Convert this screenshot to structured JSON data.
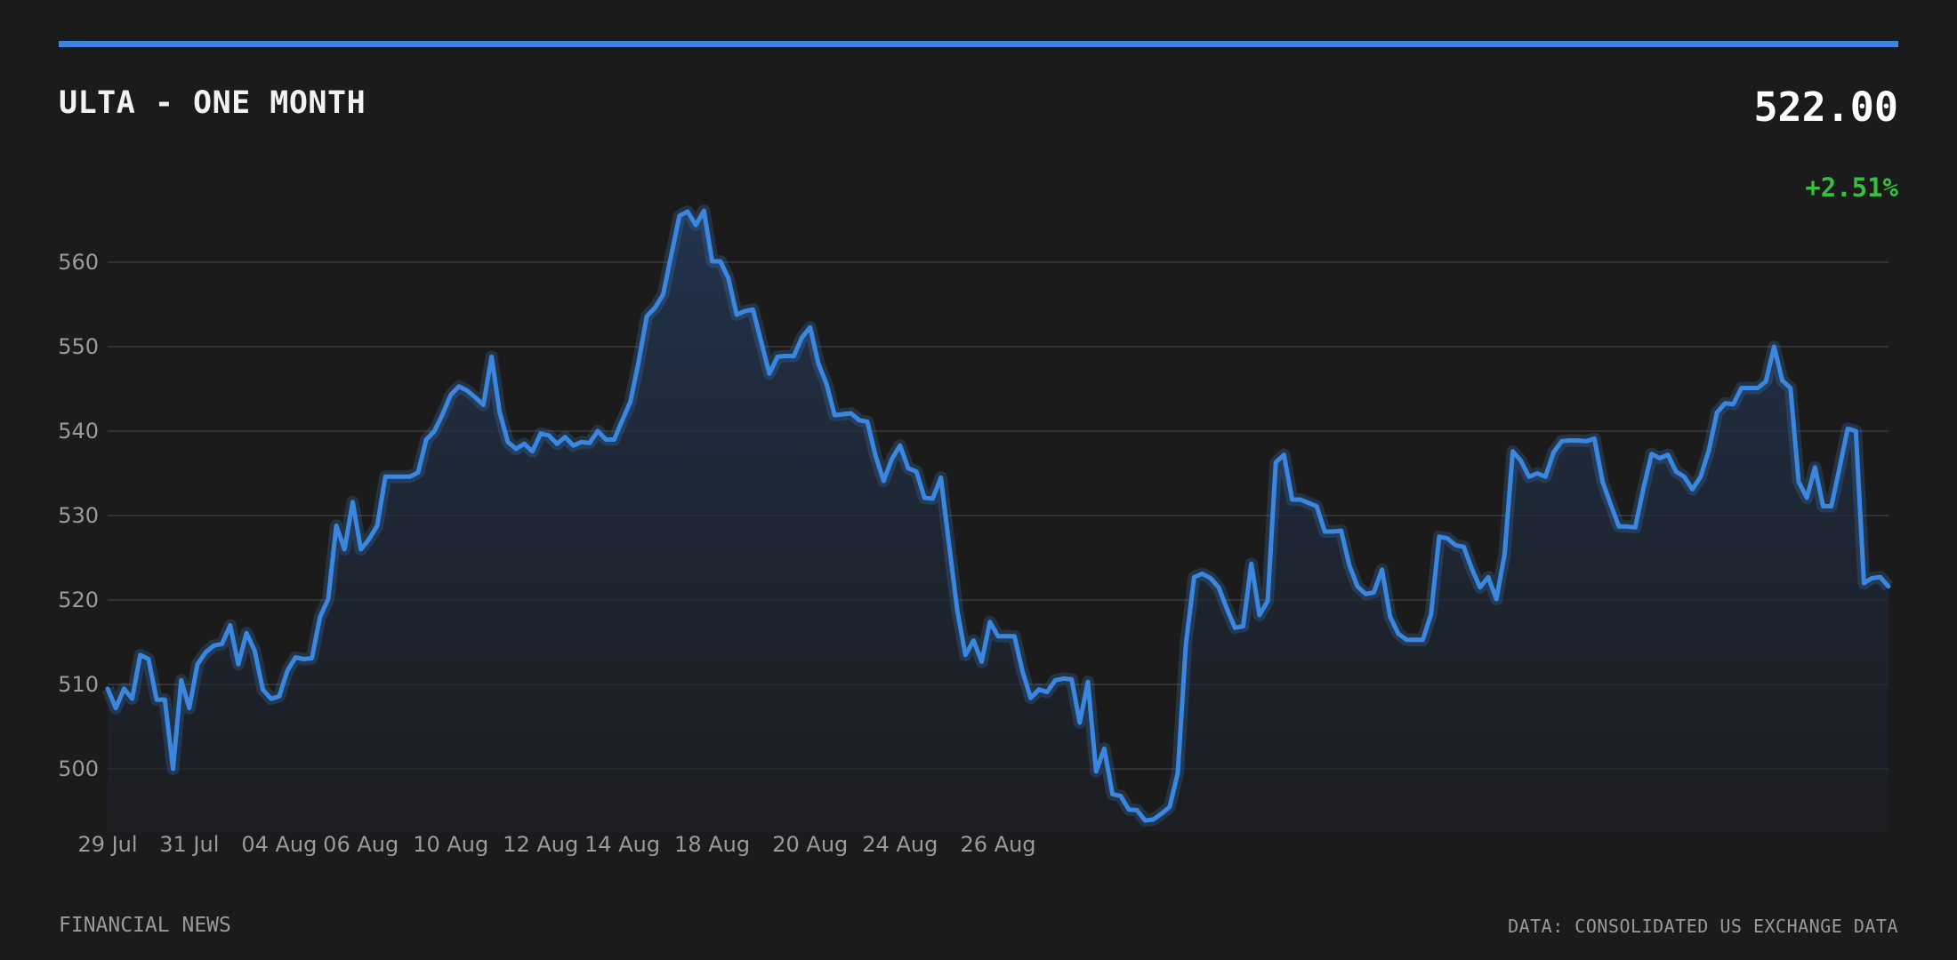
{
  "header": {
    "title": "ULTA - ONE MONTH",
    "price": "522.00",
    "change": "+2.51%"
  },
  "footer": {
    "left": "FINANCIAL NEWS",
    "right": "DATA: CONSOLIDATED US EXCHANGE DATA"
  },
  "colors": {
    "background": "#1b1b1b",
    "line": "#3b87e0",
    "positive": "#35c03e",
    "grid": "#3a3a3a",
    "text_muted": "#9b9b9b"
  },
  "chart_data": {
    "type": "area",
    "title": "ULTA - ONE MONTH",
    "ylim": [
      494,
      567
    ],
    "yticks": [
      500,
      510,
      520,
      530,
      540,
      550,
      560
    ],
    "xticks": [
      "29 Jul",
      "31 Jul",
      "04 Aug",
      "06 Aug",
      "10 Aug",
      "12 Aug",
      "14 Aug",
      "18 Aug",
      "20 Aug",
      "24 Aug",
      "26 Aug"
    ],
    "xtick_positions": [
      0,
      10,
      21,
      31,
      42,
      53,
      63,
      74,
      86,
      97,
      109
    ],
    "grid": true,
    "series": [
      {
        "values": [
          509.5,
          507.2,
          509.5,
          508.3,
          513.5,
          513.0,
          508.2,
          508.2,
          500.0,
          510.5,
          507.2,
          512.4,
          513.8,
          514.6,
          514.8,
          517.0,
          512.4,
          516.1,
          514.0,
          509.4,
          508.3,
          508.6,
          511.6,
          513.2,
          513.0,
          513.1,
          518.0,
          520.1,
          528.8,
          526.0,
          531.6,
          526.0,
          527.2,
          528.8,
          534.6,
          534.6,
          534.6,
          534.6,
          535.1,
          539.0,
          540.0,
          542.0,
          544.3,
          545.3,
          544.8,
          544.0,
          543.1,
          548.8,
          542.2,
          538.7,
          537.9,
          538.5,
          537.6,
          539.7,
          539.5,
          538.5,
          539.3,
          538.3,
          538.7,
          538.6,
          540.0,
          539.0,
          539.0,
          541.3,
          543.5,
          548.2,
          553.6,
          554.6,
          556.2,
          560.9,
          565.5,
          566.0,
          564.4,
          566.1,
          560.1,
          560.1,
          558.1,
          553.8,
          554.2,
          554.4,
          550.6,
          546.8,
          548.8,
          548.9,
          548.9,
          551.1,
          552.3,
          548.0,
          545.6,
          541.9,
          542.0,
          542.1,
          541.3,
          541.1,
          537.1,
          534.1,
          536.7,
          538.3,
          535.6,
          535.2,
          532.1,
          532.0,
          534.5,
          526.6,
          518.8,
          513.5,
          515.2,
          512.7,
          517.4,
          515.7,
          515.7,
          515.7,
          511.5,
          508.4,
          509.4,
          509.1,
          510.5,
          510.7,
          510.6,
          505.5,
          510.3,
          499.7,
          502.4,
          497.0,
          496.8,
          495.2,
          495.1,
          493.9,
          494.0,
          494.7,
          495.5,
          499.5,
          514.8,
          522.7,
          523.1,
          522.6,
          521.5,
          519.0,
          516.7,
          516.9,
          524.3,
          518.2,
          519.9,
          536.3,
          537.2,
          531.9,
          531.9,
          531.5,
          531.1,
          528.1,
          528.1,
          528.2,
          524.1,
          521.6,
          520.7,
          520.9,
          523.6,
          518.0,
          516.0,
          515.3,
          515.3,
          515.3,
          518.3,
          527.5,
          527.3,
          526.5,
          526.3,
          523.7,
          521.5,
          522.7,
          520.1,
          525.4,
          537.6,
          536.5,
          534.6,
          535.0,
          534.6,
          537.5,
          538.8,
          538.9,
          538.9,
          538.8,
          539.1,
          534.0,
          531.3,
          528.7,
          528.7,
          528.6,
          533.2,
          537.3,
          536.8,
          537.2,
          535.2,
          534.6,
          533.1,
          534.6,
          537.7,
          542.2,
          543.3,
          543.2,
          545.1,
          545.1,
          545.1,
          545.9,
          550.0,
          546.0,
          545.1,
          534.0,
          532.1,
          535.7,
          531.1,
          531.1,
          535.6,
          540.3,
          540.0,
          522.0,
          522.6,
          522.7,
          521.6
        ]
      }
    ]
  }
}
